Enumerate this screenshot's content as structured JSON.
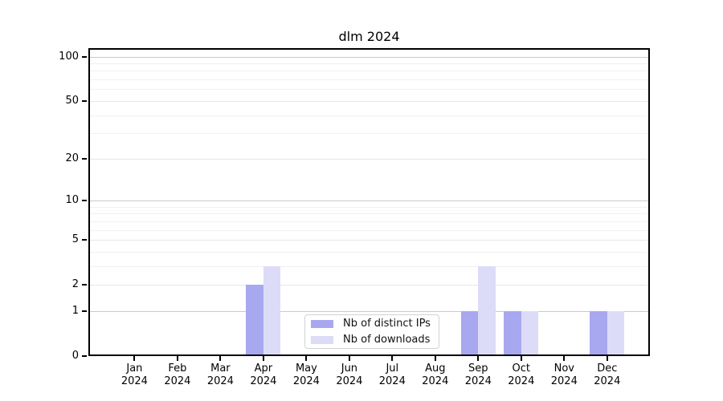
{
  "chart": {
    "title": "dlm 2024"
  },
  "chart_data": {
    "type": "bar",
    "title": "dlm 2024",
    "categories": [
      "Jan",
      "Feb",
      "Mar",
      "Apr",
      "May",
      "Jun",
      "Jul",
      "Aug",
      "Sep",
      "Oct",
      "Nov",
      "Dec"
    ],
    "year_label": "2024",
    "series": [
      {
        "name": "Nb of distinct IPs",
        "color": "#a8a8f0",
        "values": [
          0,
          0,
          0,
          2,
          0,
          0,
          0,
          0,
          1,
          1,
          0,
          1
        ]
      },
      {
        "name": "Nb of downloads",
        "color": "#dcdcf8",
        "values": [
          0,
          0,
          0,
          3,
          0,
          0,
          0,
          0,
          3,
          1,
          0,
          1
        ]
      }
    ],
    "xlabel": "",
    "ylabel": "",
    "y_scale": "log10(1+v)",
    "y_ticks": [
      0,
      1,
      2,
      5,
      10,
      20,
      50,
      100
    ],
    "y_minor_gridlines": [
      3,
      4,
      6,
      7,
      8,
      9,
      30,
      40,
      60,
      70,
      80,
      90
    ],
    "ylim": [
      0,
      114
    ],
    "grid": true,
    "legend_position": "lower center",
    "colors": {
      "grid_major": "#c9c9c9",
      "grid_mid": "#e7e7e7",
      "grid_minor": "#f1f1f1",
      "axis": "#000000"
    }
  }
}
